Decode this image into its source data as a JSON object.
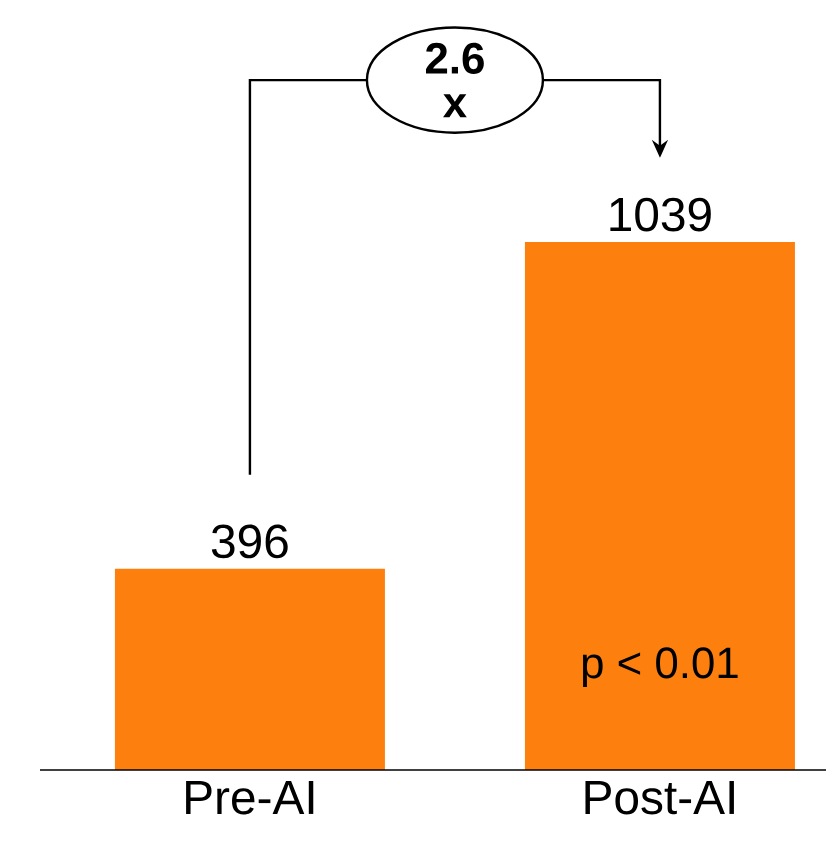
{
  "chart_data": {
    "type": "bar",
    "categories": [
      "Pre-AI",
      "Post-AI"
    ],
    "values": [
      396,
      1039
    ],
    "color": "#fd7f0e",
    "data_labels": true,
    "annotations": [
      "2.6 x",
      "p < 0.01"
    ]
  }
}
